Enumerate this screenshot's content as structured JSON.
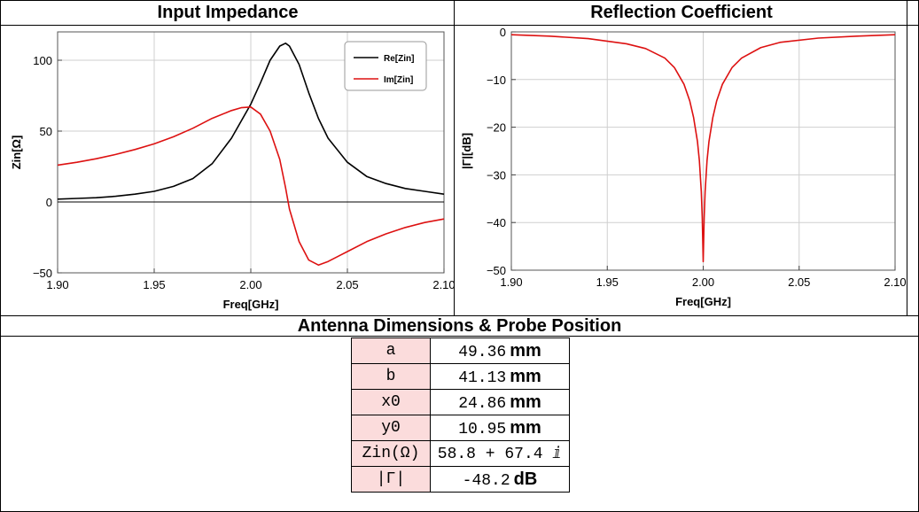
{
  "panels": {
    "left_title": "Input Impedance",
    "right_title": "Reflection Coefficient",
    "bottom_title": "Antenna Dimensions & Probe Position"
  },
  "chart_data": [
    {
      "type": "line",
      "title": "Input Impedance",
      "xlabel": "Freq[GHz]",
      "ylabel": "Zin[Ω]",
      "xlim": [
        1.9,
        2.1
      ],
      "ylim": [
        -50,
        120
      ],
      "xticks": [
        "1.90",
        "1.95",
        "2.00",
        "2.05",
        "2.10"
      ],
      "yticks": [
        "−50",
        "0",
        "50",
        "100"
      ],
      "grid": true,
      "legend_position": "top-right",
      "series": [
        {
          "name": "Re[Zin]",
          "color": "#000000",
          "x": [
            1.9,
            1.91,
            1.92,
            1.93,
            1.94,
            1.95,
            1.96,
            1.97,
            1.98,
            1.99,
            2.0,
            2.005,
            2.01,
            2.015,
            2.018,
            2.02,
            2.025,
            2.03,
            2.035,
            2.04,
            2.05,
            2.06,
            2.07,
            2.08,
            2.09,
            2.1
          ],
          "values": [
            2.0,
            2.5,
            3.0,
            4.0,
            5.5,
            7.5,
            11.0,
            16.5,
            27.0,
            45.0,
            69.0,
            84.0,
            100.0,
            110.0,
            112.0,
            110.0,
            97.0,
            77.0,
            59.0,
            45.0,
            28.0,
            18.0,
            13.0,
            9.5,
            7.5,
            5.5
          ]
        },
        {
          "name": "Im[Zin]",
          "color": "#dd1111",
          "x": [
            1.9,
            1.91,
            1.92,
            1.93,
            1.94,
            1.95,
            1.96,
            1.97,
            1.98,
            1.99,
            1.995,
            2.0,
            2.005,
            2.01,
            2.015,
            2.018,
            2.02,
            2.025,
            2.03,
            2.035,
            2.04,
            2.05,
            2.06,
            2.07,
            2.08,
            2.09,
            2.1
          ],
          "values": [
            26.0,
            28.0,
            30.5,
            33.5,
            37.0,
            41.0,
            46.0,
            52.0,
            59.0,
            64.5,
            66.5,
            67.0,
            62.0,
            50.0,
            30.0,
            10.0,
            -5.0,
            -28.0,
            -41.0,
            -44.5,
            -42.0,
            -35.0,
            -28.0,
            -22.5,
            -18.0,
            -14.5,
            -12.0
          ]
        }
      ]
    },
    {
      "type": "line",
      "title": "Reflection Coefficient",
      "xlabel": "Freq[GHz]",
      "ylabel": "|Γ|[dB]",
      "xlim": [
        1.9,
        2.1
      ],
      "ylim": [
        -50,
        0
      ],
      "xticks": [
        "1.90",
        "1.95",
        "2.00",
        "2.05",
        "2.10"
      ],
      "yticks": [
        "0",
        "−10",
        "−20",
        "−30",
        "−40",
        "−50"
      ],
      "grid": true,
      "series": [
        {
          "name": "",
          "color": "#dd1111",
          "x": [
            1.9,
            1.92,
            1.94,
            1.96,
            1.97,
            1.98,
            1.985,
            1.99,
            1.993,
            1.995,
            1.997,
            1.998,
            1.999,
            1.9995,
            2.0,
            2.0005,
            2.001,
            2.002,
            2.003,
            2.005,
            2.007,
            2.01,
            2.015,
            2.02,
            2.03,
            2.04,
            2.06,
            2.08,
            2.1
          ],
          "values": [
            -0.6,
            -0.9,
            -1.4,
            -2.5,
            -3.5,
            -5.5,
            -7.5,
            -11.0,
            -14.5,
            -18.0,
            -23.0,
            -27.0,
            -33.5,
            -39.0,
            -48.2,
            -39.0,
            -33.5,
            -27.0,
            -23.0,
            -18.0,
            -14.5,
            -11.0,
            -7.5,
            -5.5,
            -3.3,
            -2.2,
            -1.3,
            -0.9,
            -0.6
          ]
        }
      ]
    }
  ],
  "dimensions": {
    "rows": [
      {
        "key": "a",
        "value": "49.36",
        "unit": "mm"
      },
      {
        "key": "b",
        "value": "41.13",
        "unit": "mm"
      },
      {
        "key": "x0",
        "value": "24.86",
        "unit": "mm"
      },
      {
        "key": "y0",
        "value": "10.95",
        "unit": "mm"
      },
      {
        "key": "Zin(Ω)",
        "value": "58.8 + 67.4 ⅈ",
        "unit": ""
      },
      {
        "key": "|Γ|",
        "value": "-48.2",
        "unit": "dB"
      }
    ]
  }
}
